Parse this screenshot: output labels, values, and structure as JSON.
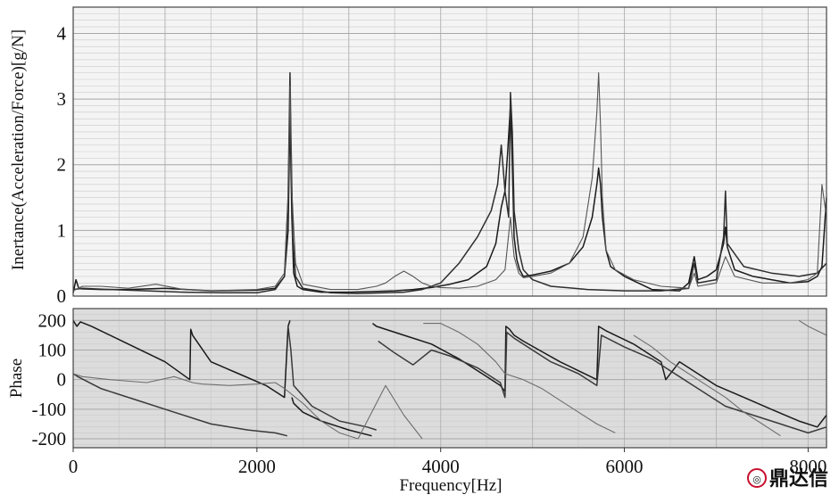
{
  "chart_data": [
    {
      "type": "line",
      "panel": "magnitude",
      "xlabel": "",
      "ylabel": "Inertance(Acceleration/Force)[g/N]",
      "xlim": [
        0,
        8200
      ],
      "ylim": [
        0,
        4.4
      ],
      "yticks": [
        0,
        1,
        2,
        3,
        4
      ],
      "ytick_labels": [
        "0",
        "1",
        "2",
        "3",
        "4"
      ],
      "grid": true,
      "series": [
        {
          "color": "#1a1a1a",
          "x": [
            0,
            30,
            60,
            100,
            300,
            600,
            1000,
            1500,
            2000,
            2200,
            2300,
            2340,
            2360,
            2380,
            2400,
            2440,
            2500,
            2700,
            3000,
            3300,
            3500,
            3700,
            3900,
            4100,
            4300,
            4500,
            4600,
            4660,
            4700,
            4730,
            4760,
            4780,
            4800,
            4830,
            4860,
            4900,
            5000,
            5100,
            5200,
            5400,
            5550,
            5650,
            5700,
            5720,
            5740,
            5760,
            5800,
            5850,
            6000,
            6300,
            6600,
            6700,
            6760,
            6800,
            6900,
            7000,
            7080,
            7100,
            7120,
            7200,
            7400,
            7600,
            7800,
            8000,
            8100,
            8150,
            8200
          ],
          "y": [
            0.05,
            0.25,
            0.12,
            0.11,
            0.1,
            0.1,
            0.12,
            0.08,
            0.09,
            0.12,
            0.3,
            1.0,
            2.8,
            1.2,
            0.35,
            0.15,
            0.1,
            0.06,
            0.06,
            0.07,
            0.08,
            0.1,
            0.13,
            0.18,
            0.25,
            0.45,
            0.8,
            1.35,
            1.6,
            2.2,
            2.9,
            2.0,
            0.9,
            0.55,
            0.4,
            0.3,
            0.32,
            0.35,
            0.38,
            0.5,
            0.75,
            1.2,
            1.7,
            1.95,
            1.7,
            1.2,
            0.7,
            0.45,
            0.3,
            0.1,
            0.08,
            0.2,
            0.6,
            0.25,
            0.3,
            0.4,
            0.8,
            1.05,
            0.75,
            0.4,
            0.3,
            0.25,
            0.2,
            0.22,
            0.3,
            0.45,
            1.5
          ]
        },
        {
          "color": "#2e2e2e",
          "x": [
            0,
            100,
            400,
            800,
            1200,
            1600,
            2000,
            2200,
            2300,
            2340,
            2360,
            2370,
            2390,
            2420,
            2500,
            2800,
            3100,
            3400,
            3600,
            3800,
            4000,
            4200,
            4400,
            4550,
            4620,
            4660,
            4700,
            4740,
            4760,
            4780,
            4800,
            4850,
            4900,
            5000,
            5200,
            5600,
            6000,
            6400,
            6700,
            6760,
            6800,
            7000,
            7080,
            7100,
            7120,
            7300,
            7600,
            7900,
            8100,
            8200
          ],
          "y": [
            0.1,
            0.12,
            0.1,
            0.08,
            0.06,
            0.05,
            0.05,
            0.1,
            0.3,
            1.5,
            3.4,
            2.5,
            0.9,
            0.3,
            0.12,
            0.05,
            0.04,
            0.05,
            0.06,
            0.1,
            0.2,
            0.5,
            0.9,
            1.3,
            1.7,
            2.3,
            1.6,
            1.2,
            3.1,
            2.5,
            1.3,
            0.7,
            0.4,
            0.25,
            0.15,
            0.1,
            0.08,
            0.08,
            0.12,
            0.5,
            0.2,
            0.25,
            0.9,
            1.6,
            0.8,
            0.45,
            0.35,
            0.3,
            0.35,
            0.5
          ]
        },
        {
          "color": "#555555",
          "x": [
            0,
            100,
            300,
            600,
            900,
            1200,
            1500,
            2000,
            2200,
            2300,
            2340,
            2360,
            2380,
            2420,
            2500,
            2800,
            3100,
            3300,
            3400,
            3500,
            3600,
            3700,
            3800,
            3900,
            4000,
            4200,
            4400,
            4600,
            4700,
            4760,
            4800,
            4850,
            4900,
            5000,
            5200,
            5400,
            5550,
            5650,
            5700,
            5720,
            5740,
            5760,
            5800,
            5900,
            6100,
            6400,
            6700,
            6760,
            6800,
            7000,
            7100,
            7200,
            7500,
            7800,
            8000,
            8100,
            8150,
            8200
          ],
          "y": [
            0.08,
            0.15,
            0.15,
            0.12,
            0.18,
            0.1,
            0.08,
            0.1,
            0.15,
            0.35,
            1.5,
            3.2,
            1.6,
            0.5,
            0.18,
            0.1,
            0.1,
            0.15,
            0.2,
            0.3,
            0.38,
            0.3,
            0.2,
            0.15,
            0.13,
            0.12,
            0.15,
            0.25,
            0.4,
            1.2,
            0.6,
            0.35,
            0.28,
            0.3,
            0.35,
            0.5,
            0.9,
            1.8,
            2.8,
            3.4,
            2.6,
            1.5,
            0.7,
            0.4,
            0.25,
            0.15,
            0.12,
            0.35,
            0.15,
            0.2,
            0.6,
            0.3,
            0.2,
            0.2,
            0.25,
            0.35,
            1.7,
            1.2
          ]
        }
      ]
    },
    {
      "type": "line",
      "panel": "phase",
      "xlabel": "Frequency[Hz]",
      "ylabel": "Phase",
      "xlim": [
        0,
        8200
      ],
      "ylim": [
        -230,
        240
      ],
      "yticks": [
        200,
        100,
        0,
        -100,
        -200
      ],
      "ytick_labels": [
        "200",
        "100",
        "0",
        "-100",
        "-200"
      ],
      "xticks": [
        0,
        2000,
        4000,
        6000,
        8000
      ],
      "xtick_labels": [
        "0",
        "2000",
        "4000",
        "6000",
        "8000"
      ],
      "grid": true,
      "series": [
        {
          "color": "#1a1a1a",
          "x": [
            0,
            40,
            80,
            200,
            600,
            1000,
            1270,
            1280,
            1300,
            1500,
            1800,
            2100,
            2300,
            2340,
            2360,
            2380,
            2400,
            2500,
            2700,
            3000,
            3250,
            3260,
            3300,
            3600,
            3900,
            4200,
            4500,
            4650,
            4700,
            4710,
            4750,
            4800,
            4900,
            5100,
            5300,
            5500,
            5700,
            5720,
            5800,
            6100,
            6400,
            6450,
            6600,
            6800,
            7000,
            7300,
            7600,
            7900,
            8100,
            8200
          ],
          "y": [
            200,
            180,
            195,
            180,
            120,
            60,
            0,
            170,
            150,
            60,
            20,
            -20,
            -60,
            180,
            200,
            -60,
            -80,
            -110,
            -140,
            -170,
            -190,
            190,
            180,
            150,
            120,
            70,
            10,
            -20,
            -40,
            180,
            170,
            150,
            130,
            95,
            60,
            30,
            0,
            180,
            165,
            120,
            60,
            0,
            60,
            20,
            -20,
            -60,
            -100,
            -140,
            -160,
            -120
          ]
        },
        {
          "color": "#3a3a3a",
          "x": [
            0,
            50,
            300,
            700,
            1100,
            1500,
            1900,
            2200,
            2330,
            2340,
            2370,
            2400,
            2600,
            2900,
            3200,
            3300,
            3320,
            3500,
            3700,
            3900,
            4100,
            4400,
            4650,
            4700,
            4720,
            4800,
            5000,
            5200,
            5500,
            5700,
            5750,
            6000,
            6300,
            6500,
            6700,
            6900,
            7100,
            7400,
            7700,
            8000,
            8200
          ],
          "y": [
            20,
            10,
            -30,
            -70,
            -110,
            -150,
            -170,
            -180,
            -190,
            180,
            100,
            -20,
            -90,
            -140,
            -160,
            -170,
            130,
            90,
            50,
            100,
            80,
            40,
            -10,
            -60,
            160,
            140,
            100,
            60,
            20,
            -20,
            150,
            110,
            70,
            30,
            -10,
            -50,
            -90,
            -120,
            -150,
            -180,
            -160
          ]
        },
        {
          "color": "#6e6e6e",
          "x": [
            0,
            100,
            400,
            800,
            1100,
            1300,
            1400,
            1700,
            2000,
            2200,
            2300,
            2500,
            2700,
            2900,
            3100,
            3400,
            3600,
            3800,
            3810,
            4000,
            4200,
            4400,
            4600,
            4700,
            4900,
            5100,
            5300,
            5500,
            5700,
            5900,
            6100,
            6300,
            6500,
            6700,
            6900,
            7100,
            7300,
            7500,
            7700,
            7900,
            8000,
            8200
          ],
          "y": [
            20,
            10,
            0,
            -10,
            10,
            -10,
            -15,
            -20,
            -15,
            -10,
            -30,
            -80,
            -140,
            -180,
            -200,
            -20,
            -120,
            -200,
            190,
            190,
            160,
            120,
            60,
            20,
            0,
            -30,
            -70,
            -110,
            -150,
            -180,
            150,
            110,
            60,
            20,
            -20,
            -60,
            -110,
            -150,
            -190,
            200,
            180,
            150
          ]
        }
      ]
    }
  ],
  "watermark": {
    "text": "鼎达信",
    "color": "#c8102e"
  }
}
